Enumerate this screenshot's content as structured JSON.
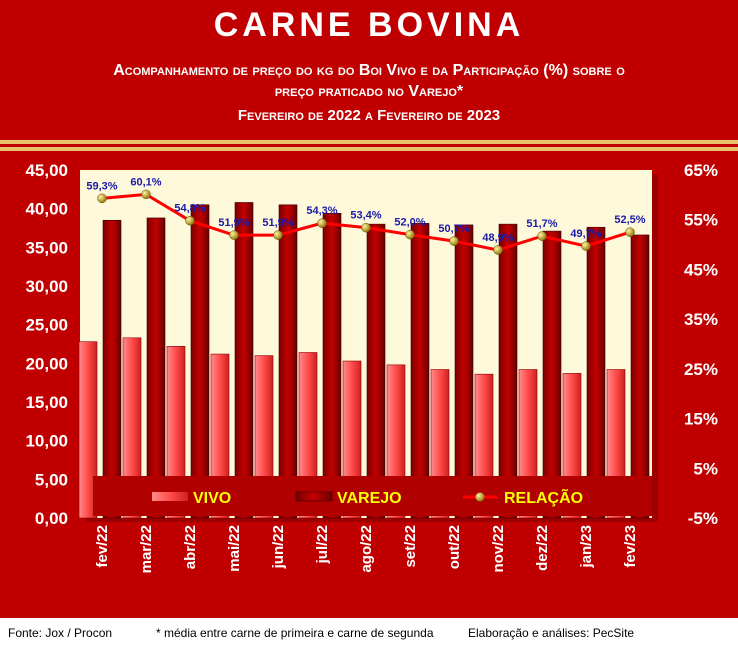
{
  "header": {
    "title": "CARNE BOVINA",
    "subtitle_line1": "Acompanhamento de preço do kg do Boi Vivo e da Participação (%) sobre o",
    "subtitle_line2": "preço praticado no Varejo*",
    "period": "Fevereiro de 2022 a Fevereiro de 2023"
  },
  "footer": {
    "source": "Fonte: Jox / Procon",
    "note": "* média entre carne de primeira e carne de segunda",
    "credit": "Elaboração e análises: PecSite"
  },
  "colors": {
    "frame": "#c00000",
    "plot_bg": "#fff9dc",
    "vivo": "#ff5a5a",
    "varejo": "#b80000",
    "relacao_line": "#ff0000",
    "relacao_marker": "#c8a800",
    "labels": "#1a1aa8",
    "legend_text": "#ffff00"
  },
  "chart_data": {
    "type": "bar",
    "categories": [
      "fev/22",
      "mar/22",
      "abr/22",
      "mai/22",
      "jun/22",
      "jul/22",
      "ago/22",
      "set/22",
      "out/22",
      "nov/22",
      "dez/22",
      "jan/23",
      "fev/23"
    ],
    "series": [
      {
        "name": "VIVO",
        "type": "bar",
        "axis": "left",
        "values": [
          22.8,
          23.3,
          22.2,
          21.2,
          21.0,
          21.4,
          20.3,
          19.8,
          19.2,
          18.6,
          19.2,
          18.7,
          19.2
        ]
      },
      {
        "name": "VAREJO",
        "type": "bar",
        "axis": "left",
        "values": [
          38.5,
          38.8,
          40.5,
          40.8,
          40.5,
          39.4,
          38.0,
          38.1,
          37.9,
          38.0,
          37.1,
          37.6,
          36.6
        ]
      },
      {
        "name": "RELAÇÃO",
        "type": "line",
        "axis": "right",
        "values": [
          59.3,
          60.1,
          54.8,
          51.9,
          51.9,
          54.3,
          53.4,
          52.0,
          50.7,
          48.9,
          51.7,
          49.7,
          52.5
        ],
        "labels": [
          "59,3%",
          "60,1%",
          "54,8%",
          "51,9%",
          "51,9%",
          "54,3%",
          "53,4%",
          "52,0%",
          "50,7%",
          "48,9%",
          "51,7%",
          "49,7%",
          "52,5%"
        ]
      }
    ],
    "y_left": {
      "range": [
        0,
        45
      ],
      "ticks": [
        "0,00",
        "5,00",
        "10,00",
        "15,00",
        "20,00",
        "25,00",
        "30,00",
        "35,00",
        "40,00",
        "45,00"
      ]
    },
    "y_right": {
      "range": [
        -5,
        65
      ],
      "ticks": [
        "-5%",
        "5%",
        "15%",
        "25%",
        "35%",
        "45%",
        "55%",
        "65%"
      ]
    },
    "legend": {
      "placement": "bottom-inside",
      "entries": [
        "VIVO",
        "VAREJO",
        "RELAÇÃO"
      ]
    },
    "grid": false
  }
}
